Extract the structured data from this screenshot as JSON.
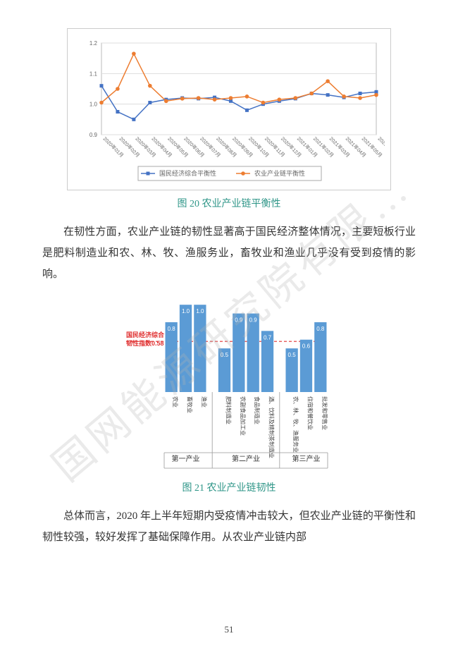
{
  "watermark": "国网能源研究院有限…",
  "lineChart": {
    "type": "line",
    "ylim": [
      0.9,
      1.2
    ],
    "yticks": [
      0.9,
      1.0,
      1.1,
      1.2
    ],
    "categories": [
      "2020年01月",
      "2020年02月",
      "2020年03月",
      "2020年04月",
      "2020年05月",
      "2020年06月",
      "2020年07月",
      "2020年08月",
      "2020年09月",
      "2020年10月",
      "2020年11月",
      "2020年12月",
      "2021年01月",
      "2021年02月",
      "2021年03月",
      "2021年04月",
      "2021年05月",
      "2021年06月"
    ],
    "series": [
      {
        "name": "国民经济综合平衡性",
        "color": "#4472c4",
        "marker": "square",
        "values": [
          1.06,
          0.975,
          0.95,
          1.005,
          1.015,
          1.02,
          1.018,
          1.022,
          1.01,
          0.98,
          1.0,
          1.01,
          1.018,
          1.035,
          1.03,
          1.022,
          1.035,
          1.04
        ]
      },
      {
        "name": "农业产业链平衡性",
        "color": "#ed7d31",
        "marker": "circle",
        "values": [
          1.005,
          1.05,
          1.165,
          1.06,
          1.01,
          1.018,
          1.02,
          1.015,
          1.02,
          1.025,
          1.005,
          1.015,
          1.02,
          1.035,
          1.075,
          1.025,
          1.02,
          1.03
        ]
      }
    ],
    "border_color": "#bbbbbb",
    "grid_color": "#dddddd",
    "background": "#ffffff"
  },
  "caption1": "图 20 农业产业链平衡性",
  "para1": "在韧性方面，农业产业链的韧性显著高于国民经济整体情况，主要短板行业是肥料制造业和农、林、牧、渔服务业，畜牧业和渔业几乎没有受到疫情的影响。",
  "barChart": {
    "type": "bar",
    "ref_label_prefix": "国民经济综合",
    "ref_label_line2": "韧性指数0.58",
    "ref_value": 0.58,
    "ref_color": "#e03030",
    "bar_color": "#5b9bd5",
    "ymax": 1.05,
    "groups": [
      {
        "label": "第一产业",
        "bars": [
          {
            "label": "农业",
            "value": 0.8
          },
          {
            "label": "畜牧业",
            "value": 1.0
          },
          {
            "label": "渔业",
            "value": 1.0
          }
        ]
      },
      {
        "label": "第二产业",
        "bars": [
          {
            "label": "肥料制造业",
            "value": 0.5
          },
          {
            "label": "农副食品加工业",
            "value": 0.9
          },
          {
            "label": "食品制造业",
            "value": 0.9
          },
          {
            "label": "酒、饮料及精制茶制造业",
            "value": 0.7
          }
        ]
      },
      {
        "label": "第三产业",
        "bars": [
          {
            "label": "农、林、牧、渔服务业",
            "value": 0.5
          },
          {
            "label": "住宿和餐饮业",
            "value": 0.6
          },
          {
            "label": "批发和零售业",
            "value": 0.8
          }
        ]
      }
    ]
  },
  "caption2": "图 21 农业产业链韧性",
  "para2": "总体而言，2020 年上半年短期内受疫情冲击较大，但农业产业链的平衡性和韧性较强，较好发挥了基础保障作用。从农业产业链内部",
  "pageNumber": "51"
}
